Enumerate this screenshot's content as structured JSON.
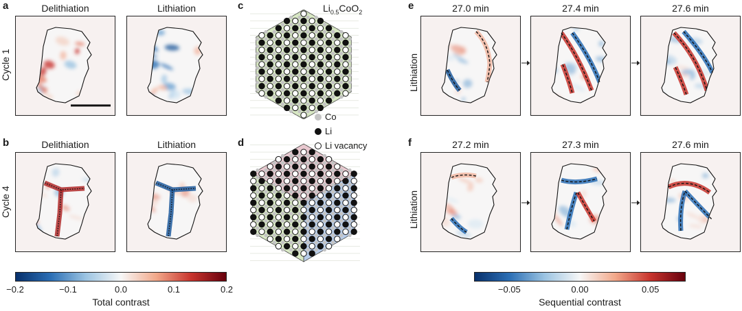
{
  "panels": {
    "a": {
      "letter": "a",
      "row_label": "Cycle 1",
      "titles": [
        "Delithiation",
        "Lithiation"
      ]
    },
    "b": {
      "letter": "b",
      "row_label": "Cycle 4",
      "titles": [
        "Delithiation",
        "Lithiation"
      ]
    },
    "c": {
      "letter": "c",
      "formula_main": "Li",
      "formula_sub": "0.5",
      "formula_rest": "CoO",
      "formula_sub2": "2"
    },
    "d": {
      "letter": "d"
    },
    "e": {
      "letter": "e",
      "row_label": "Lithiation",
      "times": [
        "27.0 min",
        "27.4 min",
        "27.6 min"
      ]
    },
    "f": {
      "letter": "f",
      "row_label": "Lithiation",
      "times": [
        "27.2 min",
        "27.3 min",
        "27.6 min"
      ]
    }
  },
  "legend": {
    "items": [
      {
        "label": "Co",
        "marker": "grey-dot"
      },
      {
        "label": "Li",
        "marker": "black-dot"
      },
      {
        "label": "Li vacancy",
        "marker": "open-dot"
      }
    ]
  },
  "colorbar_total": {
    "label": "Total contrast",
    "ticks": [
      "−0.2",
      "−0.1",
      "0.0",
      "0.1",
      "0.2"
    ],
    "range": [
      -0.2,
      0.2
    ],
    "colormap": [
      "#08306b",
      "#2c6fb5",
      "#9cc4e2",
      "#f7f7f7",
      "#f2a98b",
      "#c8352e",
      "#67000d"
    ]
  },
  "colorbar_sequential": {
    "label": "Sequential contrast",
    "ticks": [
      "−0.05",
      "0.00",
      "0.05"
    ],
    "range": [
      -0.075,
      0.075
    ],
    "colormap": [
      "#08306b",
      "#2c6fb5",
      "#9cc4e2",
      "#f7f7f7",
      "#f2a98b",
      "#c8352e",
      "#67000d"
    ]
  },
  "colors": {
    "red": "#c8352e",
    "blue": "#2c6fb5",
    "lattice_green": "#d8e8c4",
    "lattice_pink": "#e8c8cf",
    "lattice_blue": "#b8cdea",
    "co_grey": "#c4c4c4"
  }
}
